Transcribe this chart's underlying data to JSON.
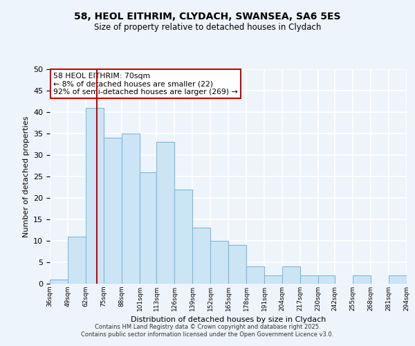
{
  "title": "58, HEOL EITHRIM, CLYDACH, SWANSEA, SA6 5ES",
  "subtitle": "Size of property relative to detached houses in Clydach",
  "xlabel": "Distribution of detached houses by size in Clydach",
  "ylabel": "Number of detached properties",
  "bin_edges": [
    36,
    49,
    62,
    75,
    88,
    101,
    113,
    126,
    139,
    152,
    165,
    178,
    191,
    204,
    217,
    230,
    242,
    255,
    268,
    281,
    294
  ],
  "bin_labels": [
    "36sqm",
    "49sqm",
    "62sqm",
    "75sqm",
    "88sqm",
    "101sqm",
    "113sqm",
    "126sqm",
    "139sqm",
    "152sqm",
    "165sqm",
    "178sqm",
    "191sqm",
    "204sqm",
    "217sqm",
    "230sqm",
    "242sqm",
    "255sqm",
    "268sqm",
    "281sqm",
    "294sqm"
  ],
  "counts": [
    1,
    11,
    41,
    34,
    35,
    26,
    33,
    22,
    13,
    10,
    9,
    4,
    2,
    4,
    2,
    2,
    0,
    2,
    0,
    2
  ],
  "bar_color": "#cce5f5",
  "bar_edge_color": "#7ab8d9",
  "property_line_x": 70,
  "annotation_title": "58 HEOL EITHRIM: 70sqm",
  "annotation_line1": "← 8% of detached houses are smaller (22)",
  "annotation_line2": "92% of semi-detached houses are larger (269) →",
  "annotation_box_color": "#ffffff",
  "annotation_box_edge_color": "#cc0000",
  "vline_color": "#cc0000",
  "ylim": [
    0,
    50
  ],
  "yticks": [
    0,
    5,
    10,
    15,
    20,
    25,
    30,
    35,
    40,
    45,
    50
  ],
  "footer1": "Contains HM Land Registry data © Crown copyright and database right 2025.",
  "footer2": "Contains public sector information licensed under the Open Government Licence v3.0.",
  "bg_color": "#eef4fb",
  "grid_color": "#ffffff"
}
